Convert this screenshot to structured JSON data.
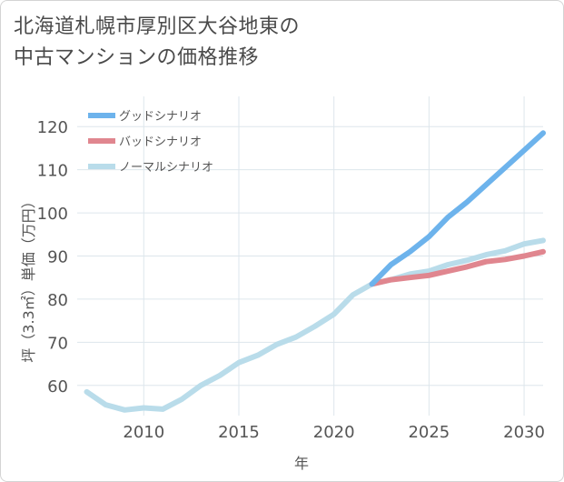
{
  "title": {
    "line1": "北海道札幌市厚別区大谷地東の",
    "line2": "中古マンションの価格推移"
  },
  "chart_data": {
    "type": "line",
    "title": "北海道札幌市厚別区大谷地東の中古マンションの価格推移",
    "xlabel": "年",
    "ylabel": "坪（3.3㎡）単価（万円）",
    "xlim": [
      2006.5,
      2031
    ],
    "ylim": [
      53,
      127
    ],
    "x_ticks": [
      2010,
      2015,
      2020,
      2025,
      2030
    ],
    "y_ticks": [
      60,
      70,
      80,
      90,
      100,
      110,
      120
    ],
    "grid": true,
    "legend_position": "top-left",
    "series": [
      {
        "name": "グッドシナリオ",
        "color": "#6db3ec",
        "x": [
          2022,
          2023,
          2024,
          2025,
          2026,
          2027,
          2028,
          2029,
          2030,
          2031
        ],
        "values": [
          83.5,
          88,
          91,
          94.5,
          99,
          102.5,
          106.5,
          110.5,
          114.5,
          118.5
        ]
      },
      {
        "name": "バッドシナリオ",
        "color": "#e0868f",
        "x": [
          2022,
          2023,
          2024,
          2025,
          2026,
          2027,
          2028,
          2029,
          2030,
          2031
        ],
        "values": [
          83.5,
          84.5,
          85,
          85.5,
          86.5,
          87.5,
          88.7,
          89.2,
          90,
          91
        ]
      },
      {
        "name": "ノーマルシナリオ",
        "color": "#b9dcea",
        "x": [
          2007,
          2008,
          2009,
          2010,
          2011,
          2012,
          2013,
          2014,
          2015,
          2016,
          2017,
          2018,
          2019,
          2020,
          2021,
          2022,
          2023,
          2024,
          2025,
          2026,
          2027,
          2028,
          2029,
          2030,
          2031
        ],
        "values": [
          58.5,
          55.5,
          54.3,
          54.8,
          54.5,
          56.8,
          60,
          62.3,
          65.3,
          67,
          69.5,
          71.2,
          73.7,
          76.5,
          81,
          83.5,
          84.5,
          85.8,
          86.5,
          88,
          89,
          90.3,
          91.2,
          92.8,
          93.6
        ]
      }
    ]
  }
}
